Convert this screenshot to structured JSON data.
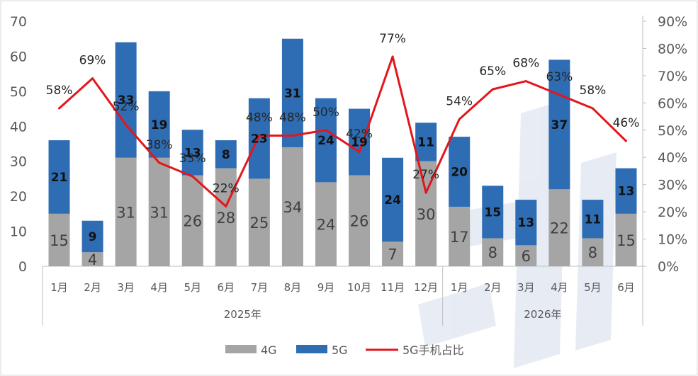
{
  "chart_data": {
    "type": "bar",
    "stacked": true,
    "groups": [
      {
        "label": "2025年",
        "months": [
          "1月",
          "2月",
          "3月",
          "4月",
          "5月",
          "6月",
          "7月",
          "8月",
          "9月",
          "10月",
          "11月",
          "12月"
        ]
      },
      {
        "label": "2026年",
        "months": [
          "1月",
          "2月",
          "3月",
          "4月",
          "5月",
          "6月"
        ]
      }
    ],
    "series": [
      {
        "name": "4G",
        "color": "#a5a5a5",
        "values": [
          15,
          4,
          31,
          31,
          26,
          28,
          25,
          34,
          24,
          26,
          7,
          30,
          17,
          8,
          6,
          22,
          8,
          15
        ]
      },
      {
        "name": "5G",
        "color": "#2e6db4",
        "values": [
          21,
          9,
          33,
          19,
          13,
          8,
          23,
          31,
          24,
          19,
          24,
          11,
          20,
          15,
          13,
          37,
          11,
          13
        ]
      }
    ],
    "line_series": {
      "name": "5G手机占比",
      "color": "#e3161c",
      "values": [
        58,
        69,
        52,
        38,
        33,
        22,
        48,
        48,
        50,
        42,
        77,
        27,
        54,
        65,
        68,
        63,
        58,
        46
      ],
      "labels": [
        "58%",
        "69%",
        "52%",
        "38%",
        "33%",
        "22%",
        "48%",
        "48%",
        "50%",
        "42%",
        "77%",
        "27%",
        "54%",
        "65%",
        "68%",
        "63%",
        "58%",
        "46%"
      ]
    },
    "y_left": {
      "min": 0,
      "max": 70,
      "step": 10,
      "ticks": [
        "0",
        "10",
        "20",
        "30",
        "40",
        "50",
        "60",
        "70"
      ]
    },
    "y_right": {
      "min": 0,
      "max": 90,
      "step": 10,
      "ticks": [
        "0%",
        "10%",
        "20%",
        "30%",
        "40%",
        "50%",
        "60%",
        "70%",
        "80%",
        "90%"
      ]
    },
    "grid": false,
    "legend_position": "bottom"
  },
  "legend": [
    {
      "label": "4G",
      "kind": "bar",
      "color": "#a5a5a5"
    },
    {
      "label": "5G",
      "kind": "bar",
      "color": "#2e6db4"
    },
    {
      "label": "5G手机占比",
      "kind": "line",
      "color": "#e3161c"
    }
  ]
}
